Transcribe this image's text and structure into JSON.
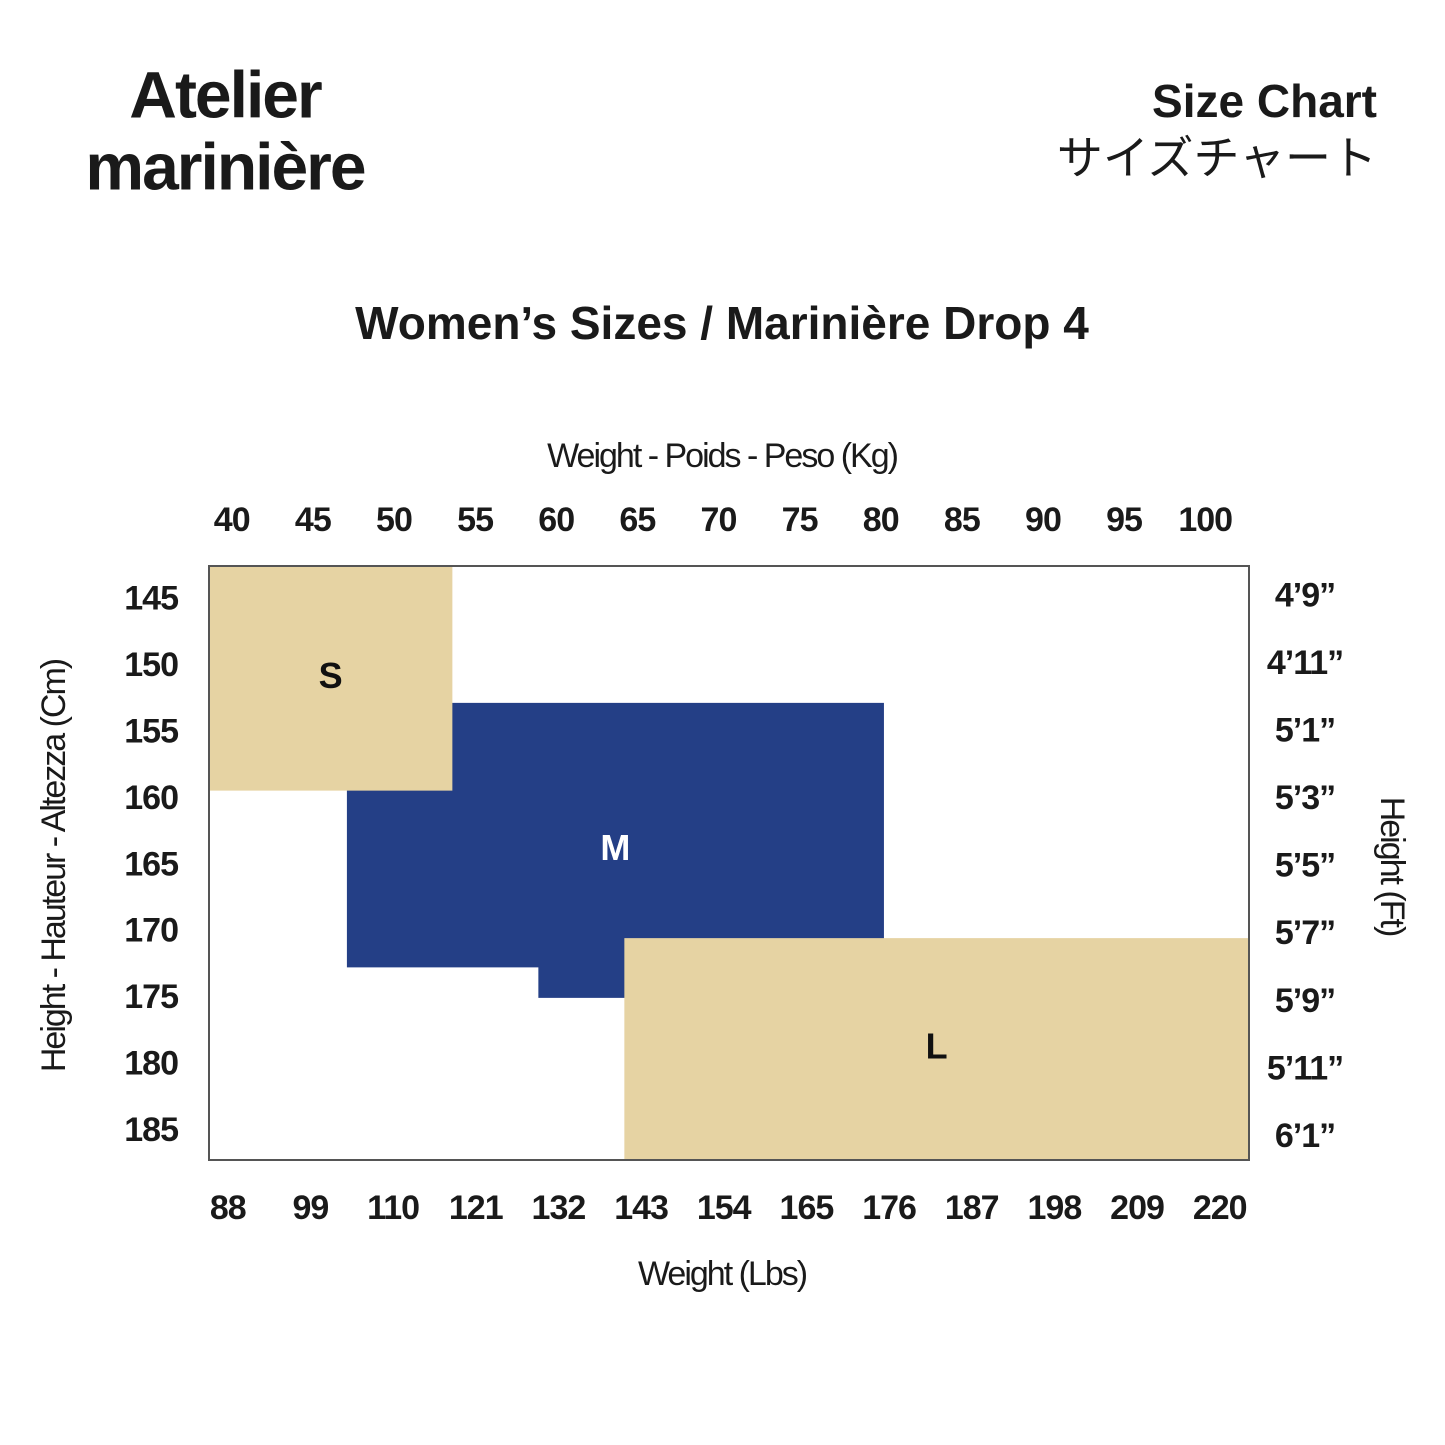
{
  "header": {
    "brand": [
      "Atelier",
      "marinière"
    ],
    "chart_label": "Size Chart",
    "chart_label_ja": "サイズチャート"
  },
  "chart_data": {
    "type": "size-regions",
    "title": "Women’s Sizes / Marinière Drop 4",
    "x_label": "Weight - Poids - Peso (Kg)",
    "x2_label": "Weight (Lbs)",
    "y_label": "Height - Hauteur - Altezza (Cm)",
    "y2_label": "Height (Ft)",
    "xlim": [
      38.6,
      102.7
    ],
    "xticks": [
      40,
      45,
      50,
      55,
      60,
      65,
      70,
      75,
      80,
      85,
      90,
      95,
      100
    ],
    "x2lim": [
      85.5,
      223.9
    ],
    "x2ticks": [
      88,
      99,
      110,
      121,
      132,
      143,
      154,
      165,
      176,
      187,
      198,
      209,
      220
    ],
    "ylim": [
      142.4,
      187.1
    ],
    "yticks": [
      145,
      150,
      155,
      160,
      165,
      170,
      175,
      180,
      185
    ],
    "y2lim": [
      4.672,
      6.138
    ],
    "y2ticks": [
      {
        "value": 4.75,
        "label": "4’9”"
      },
      {
        "value": 4.9167,
        "label": "4’11”"
      },
      {
        "value": 5.0833,
        "label": "5’1”"
      },
      {
        "value": 5.25,
        "label": "5’3”"
      },
      {
        "value": 5.4167,
        "label": "5’5”"
      },
      {
        "value": 5.5833,
        "label": "5’7”"
      },
      {
        "value": 5.75,
        "label": "5’9”"
      },
      {
        "value": 5.9167,
        "label": "5’11”"
      },
      {
        "value": 6.0833,
        "label": "6’1”"
      }
    ],
    "regions": [
      {
        "name": "M",
        "color": "#243f86",
        "label_color": "#ffffff",
        "x": [
          47.1,
          80.2,
          80.2,
          58.9,
          58.9,
          47.1
        ],
        "y": [
          152.7,
          152.7,
          174.9,
          174.9,
          172.6,
          172.6
        ]
      },
      {
        "name": "S",
        "color": "#e6d3a3",
        "label_color": "#111111",
        "x": [
          38.6,
          53.6,
          53.6,
          38.6
        ],
        "y": [
          142.4,
          142.4,
          159.3,
          159.3
        ]
      },
      {
        "name": "L",
        "color": "#e6d3a3",
        "label_color": "#111111",
        "x": [
          64.2,
          102.7,
          102.7,
          64.2
        ],
        "y": [
          170.4,
          170.4,
          187.1,
          187.1
        ]
      }
    ]
  }
}
